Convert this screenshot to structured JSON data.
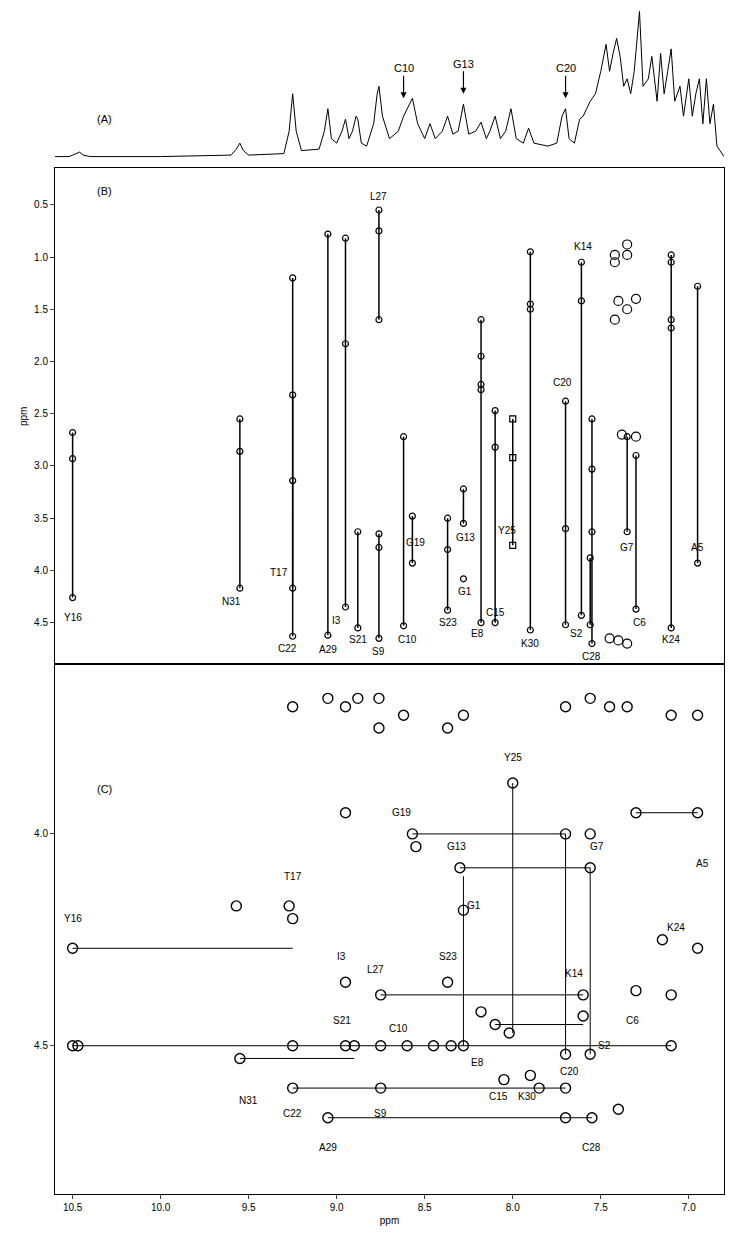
{
  "chart_data": [
    {
      "type": "line",
      "label": "(A)",
      "color": "#000000",
      "tick_labels": false,
      "xlim": [
        10.6,
        6.8
      ],
      "ylim": [
        0,
        1.05
      ],
      "x": [
        10.6,
        10.52,
        10.48,
        10.46,
        10.44,
        10.4,
        10.0,
        9.6,
        9.57,
        9.55,
        9.53,
        9.5,
        9.3,
        9.27,
        9.25,
        9.23,
        9.2,
        9.1,
        9.07,
        9.05,
        9.03,
        9.0,
        8.97,
        8.95,
        8.93,
        8.91,
        8.89,
        8.88,
        8.86,
        8.83,
        8.79,
        8.77,
        8.76,
        8.74,
        8.7,
        8.65,
        8.62,
        8.6,
        8.57,
        8.54,
        8.5,
        8.47,
        8.44,
        8.4,
        8.37,
        8.34,
        8.31,
        8.28,
        8.25,
        8.21,
        8.18,
        8.15,
        8.13,
        8.1,
        8.07,
        8.04,
        8.01,
        7.98,
        7.94,
        7.91,
        7.88,
        7.8,
        7.75,
        7.72,
        7.7,
        7.68,
        7.65,
        7.62,
        7.6,
        7.58,
        7.56,
        7.53,
        7.5,
        7.47,
        7.45,
        7.43,
        7.41,
        7.39,
        7.37,
        7.35,
        7.33,
        7.31,
        7.29,
        7.28,
        7.26,
        7.23,
        7.21,
        7.18,
        7.16,
        7.14,
        7.12,
        7.1,
        7.08,
        7.05,
        7.03,
        7.0,
        6.98,
        6.96,
        6.94,
        6.92,
        6.9,
        6.88,
        6.86,
        6.84,
        6.8
      ],
      "values": [
        0.03,
        0.03,
        0.05,
        0.06,
        0.04,
        0.03,
        0.03,
        0.04,
        0.08,
        0.12,
        0.07,
        0.04,
        0.05,
        0.2,
        0.45,
        0.2,
        0.07,
        0.08,
        0.2,
        0.35,
        0.15,
        0.12,
        0.2,
        0.28,
        0.15,
        0.2,
        0.3,
        0.28,
        0.12,
        0.1,
        0.25,
        0.45,
        0.5,
        0.3,
        0.15,
        0.2,
        0.3,
        0.35,
        0.42,
        0.25,
        0.15,
        0.25,
        0.15,
        0.2,
        0.3,
        0.18,
        0.2,
        0.38,
        0.18,
        0.2,
        0.26,
        0.15,
        0.2,
        0.3,
        0.15,
        0.2,
        0.35,
        0.15,
        0.12,
        0.22,
        0.12,
        0.1,
        0.12,
        0.3,
        0.35,
        0.15,
        0.12,
        0.28,
        0.3,
        0.35,
        0.4,
        0.45,
        0.6,
        0.78,
        0.6,
        0.72,
        0.82,
        0.7,
        0.5,
        0.55,
        0.45,
        0.6,
        0.9,
        1.0,
        0.5,
        0.55,
        0.7,
        0.4,
        0.72,
        0.45,
        0.6,
        0.75,
        0.4,
        0.5,
        0.3,
        0.55,
        0.3,
        0.45,
        0.55,
        0.25,
        0.55,
        0.25,
        0.38,
        0.1,
        0.03
      ],
      "annotations": [
        {
          "text": "C10",
          "x": 8.62,
          "y": 0.42
        },
        {
          "text": "G13",
          "x": 8.28,
          "y": 0.45
        },
        {
          "text": "C20",
          "x": 7.7,
          "y": 0.42
        }
      ]
    },
    {
      "type": "scatter",
      "label": "(B)",
      "color": "#000000",
      "marker": "circle-open",
      "tick_labels": "y",
      "xlim": [
        10.6,
        6.8
      ],
      "ylim": [
        4.9,
        0.15
      ],
      "y_label": "ppm",
      "yticks": [
        0.5,
        {
          "value": 1,
          "label": "1.0"
        },
        1.5,
        {
          "value": 2,
          "label": "2.0"
        },
        2.5,
        {
          "value": 3,
          "label": "3.0"
        },
        3.5,
        {
          "value": 4,
          "label": "4.0"
        },
        4.5
      ],
      "spin_systems": [
        {
          "text": "Y16",
          "x": 10.5,
          "y": [
            2.68,
            2.93,
            4.26
          ],
          "label_x": 10.5,
          "label_y": 4.45
        },
        {
          "text": "N31",
          "x": 9.55,
          "y": [
            2.55,
            2.86,
            4.17
          ],
          "label_x": 9.6,
          "label_y": 4.3
        },
        {
          "text": "T17",
          "x": 9.25,
          "y": [
            1.2,
            4.17
          ],
          "label_x": 9.33,
          "label_y": 4.02
        },
        {
          "text": "C22",
          "x": 9.25,
          "y": [
            2.32,
            3.14,
            4.63
          ],
          "label_x": 9.28,
          "label_y": 4.75
        },
        {
          "text": "A29",
          "x": 9.05,
          "y": [
            0.78,
            4.62
          ],
          "label_x": 9.05,
          "label_y": 4.76
        },
        {
          "text": "I3",
          "x": 8.95,
          "y": [
            0.82,
            1.83,
            4.35
          ],
          "label_x": 9.0,
          "label_y": 4.48
        },
        {
          "text": "S21",
          "x": 8.88,
          "y": [
            3.63,
            4.55
          ],
          "label_x": 8.88,
          "label_y": 4.66
        },
        {
          "text": "L27",
          "x": 8.76,
          "y": [
            0.55,
            0.75,
            1.6
          ],
          "label_x": 8.76,
          "label_y": 0.42
        },
        {
          "text": "S9",
          "x": 8.76,
          "y": [
            3.65,
            3.78,
            4.65
          ],
          "label_x": 8.76,
          "label_y": 4.78
        },
        {
          "text": "C10",
          "x": 8.62,
          "y": [
            2.72,
            4.53
          ],
          "label_x": 8.6,
          "label_y": 4.66
        },
        {
          "text": "G19",
          "x": 8.57,
          "y": [
            3.48,
            3.93
          ],
          "label_x": 8.55,
          "label_y": 3.73
        },
        {
          "text": "S23",
          "x": 8.37,
          "y": [
            3.5,
            3.8,
            4.38
          ],
          "label_x": 8.37,
          "label_y": 4.5
        },
        {
          "text": "G13",
          "x": 8.28,
          "y": [
            3.22,
            3.55
          ],
          "label_x": 8.27,
          "label_y": 3.68
        },
        {
          "text": "G1",
          "x": 8.28,
          "y": [
            4.08
          ],
          "label_x": 8.27,
          "label_y": 4.2
        },
        {
          "text": "E8",
          "x": 8.18,
          "y": [
            1.6,
            1.95,
            2.22,
            2.27,
            4.5
          ],
          "label_x": 8.2,
          "label_y": 4.6
        },
        {
          "text": "C15",
          "x": 8.1,
          "y": [
            2.47,
            2.82,
            4.5
          ],
          "label_x": 8.1,
          "label_y": 4.4
        },
        {
          "text": "Y25",
          "x": 8.0,
          "y": [
            2.55,
            2.92,
            3.76
          ],
          "label_x": 8.03,
          "label_y": 3.62,
          "marker": "square-open"
        },
        {
          "text": "K30",
          "x": 7.9,
          "y": [
            0.95,
            1.45,
            1.5,
            4.57
          ],
          "label_x": 7.9,
          "label_y": 4.7
        },
        {
          "text": "C20",
          "x": 7.7,
          "y": [
            2.38,
            3.6,
            4.52
          ],
          "label_x": 7.72,
          "label_y": 2.2
        },
        {
          "text": "K14",
          "x": 7.61,
          "y": [
            1.05,
            1.42,
            4.43
          ],
          "label_x": 7.6,
          "label_y": 0.9
        },
        {
          "text": "S2",
          "x": 7.56,
          "y": [
            3.88,
            4.52
          ],
          "label_x": 7.64,
          "label_y": 4.6
        },
        {
          "text": "C28",
          "x": 7.55,
          "y": [
            2.55,
            3.03,
            3.63,
            4.7
          ],
          "label_x": 7.55,
          "label_y": 4.82
        },
        {
          "text": "G7",
          "x": 7.35,
          "y": [
            2.72,
            3.63
          ],
          "label_x": 7.35,
          "label_y": 3.78
        },
        {
          "text": "C6",
          "x": 7.3,
          "y": [
            2.9,
            4.37
          ],
          "label_x": 7.28,
          "label_y": 4.5
        },
        {
          "text": "K24",
          "x": 7.1,
          "y": [
            0.98,
            1.05,
            1.6,
            1.68,
            4.55
          ],
          "label_x": 7.1,
          "label_y": 4.66
        },
        {
          "text": "A5",
          "x": 6.95,
          "y": [
            1.28,
            3.93
          ],
          "label_x": 6.95,
          "label_y": 3.78
        }
      ],
      "other_peaks": {
        "x": [
          7.42,
          7.42,
          7.35,
          7.4,
          7.35,
          7.42,
          7.3,
          7.38,
          7.3,
          7.45,
          7.4,
          7.35,
          7.35
        ],
        "y": [
          0.98,
          1.05,
          0.98,
          1.42,
          1.5,
          1.6,
          1.4,
          2.7,
          2.72,
          4.65,
          4.67,
          4.7,
          0.88
        ]
      }
    },
    {
      "type": "scatter",
      "label": "(C)",
      "color": "#000000",
      "marker": "circle-open",
      "xlim": [
        10.6,
        6.8
      ],
      "ylim": [
        4.85,
        3.6
      ],
      "x_label": "ppm",
      "xticks": [
        10.5,
        {
          "value": 10,
          "label": "10.0"
        },
        9.5,
        {
          "value": 9,
          "label": "9.0"
        },
        8.5,
        {
          "value": 8,
          "label": "8.0"
        },
        7.5,
        {
          "value": 7,
          "label": "7.0"
        }
      ],
      "yticks": [
        {
          "value": 4,
          "label": "4.0"
        },
        4.5
      ],
      "peaks": {
        "x": [
          10.5,
          10.5,
          10.47,
          9.57,
          9.55,
          9.27,
          9.25,
          9.25,
          9.25,
          9.25,
          9.05,
          9.05,
          8.95,
          8.95,
          8.9,
          8.95,
          8.95,
          8.88,
          8.75,
          8.75,
          8.75,
          8.76,
          8.76,
          8.62,
          8.6,
          8.57,
          8.55,
          8.45,
          8.37,
          8.37,
          8.35,
          8.3,
          8.28,
          8.28,
          8.28,
          8.18,
          8.1,
          8.05,
          8.02,
          8.0,
          7.9,
          7.85,
          7.7,
          7.7,
          7.7,
          7.7,
          7.7,
          7.6,
          7.6,
          7.56,
          7.56,
          7.56,
          7.56,
          7.55,
          7.45,
          7.4,
          7.35,
          7.3,
          7.3,
          7.15,
          7.1,
          7.1,
          7.1,
          6.95,
          6.95,
          6.95
        ],
        "y": [
          4.27,
          4.5,
          4.5,
          4.17,
          4.53,
          4.17,
          4.2,
          4.5,
          4.6,
          3.7,
          4.67,
          3.68,
          4.35,
          4.5,
          4.5,
          3.7,
          3.95,
          3.68,
          4.38,
          4.5,
          4.6,
          3.68,
          3.75,
          3.72,
          4.5,
          4.0,
          4.03,
          4.5,
          3.75,
          4.35,
          4.5,
          4.08,
          4.18,
          4.5,
          3.72,
          4.42,
          4.45,
          4.58,
          4.47,
          3.88,
          4.57,
          4.6,
          3.7,
          4.0,
          4.52,
          4.6,
          4.67,
          4.38,
          4.43,
          3.68,
          4.0,
          4.08,
          4.52,
          4.67,
          3.7,
          4.65,
          3.7,
          3.95,
          4.37,
          4.25,
          3.72,
          4.38,
          4.5,
          3.72,
          3.95,
          4.27
        ]
      },
      "connections": [
        {
          "x": [
            10.5,
            9.25
          ],
          "y": [
            4.27,
            4.27
          ]
        },
        {
          "x": [
            10.5,
            7.1
          ],
          "y": [
            4.5,
            4.5
          ]
        },
        {
          "x": [
            9.55,
            8.9
          ],
          "y": [
            4.53,
            4.53
          ]
        },
        {
          "x": [
            9.25,
            7.7
          ],
          "y": [
            4.6,
            4.6
          ]
        },
        {
          "x": [
            9.05,
            7.55
          ],
          "y": [
            4.67,
            4.67
          ]
        },
        {
          "x": [
            8.75,
            7.6
          ],
          "y": [
            4.38,
            4.38
          ]
        },
        {
          "x": [
            8.57,
            7.7,
            7.7
          ],
          "y": [
            4.0,
            4.0,
            4.52
          ]
        },
        {
          "x": [
            8.3,
            7.56,
            7.56
          ],
          "y": [
            4.08,
            4.08,
            4.52
          ]
        },
        {
          "x": [
            7.3,
            6.95
          ],
          "y": [
            3.95,
            3.95
          ]
        },
        {
          "x": [
            8.0,
            8.0
          ],
          "y": [
            3.88,
            4.47
          ]
        },
        {
          "x": [
            8.28,
            8.28
          ],
          "y": [
            4.1,
            4.5
          ]
        },
        {
          "x": [
            8.1,
            7.6
          ],
          "y": [
            4.45,
            4.45
          ]
        }
      ],
      "labels": [
        {
          "text": "Y16",
          "x": 10.5,
          "y": 4.2
        },
        {
          "text": "T17",
          "x": 9.25,
          "y": 4.1
        },
        {
          "text": "I3",
          "x": 8.97,
          "y": 4.29
        },
        {
          "text": "L27",
          "x": 8.78,
          "y": 4.32
        },
        {
          "text": "S21",
          "x": 8.97,
          "y": 4.44
        },
        {
          "text": "C10",
          "x": 8.65,
          "y": 4.46
        },
        {
          "text": "S9",
          "x": 8.75,
          "y": 4.66
        },
        {
          "text": "C22",
          "x": 9.25,
          "y": 4.66
        },
        {
          "text": "A29",
          "x": 9.05,
          "y": 4.74
        },
        {
          "text": "N31",
          "x": 9.5,
          "y": 4.63
        },
        {
          "text": "G19",
          "x": 8.63,
          "y": 3.95
        },
        {
          "text": "G13",
          "x": 8.32,
          "y": 4.03
        },
        {
          "text": "G1",
          "x": 8.22,
          "y": 4.17
        },
        {
          "text": "S23",
          "x": 8.37,
          "y": 4.29
        },
        {
          "text": "Y25",
          "x": 8.0,
          "y": 3.82
        },
        {
          "text": "G7",
          "x": 7.52,
          "y": 4.03
        },
        {
          "text": "A5",
          "x": 6.92,
          "y": 4.07
        },
        {
          "text": "K24",
          "x": 7.07,
          "y": 4.22
        },
        {
          "text": "K14",
          "x": 7.65,
          "y": 4.33
        },
        {
          "text": "C6",
          "x": 7.32,
          "y": 4.44
        },
        {
          "text": "S2",
          "x": 7.48,
          "y": 4.5
        },
        {
          "text": "C20",
          "x": 7.68,
          "y": 4.56
        },
        {
          "text": "E8",
          "x": 8.2,
          "y": 4.54
        },
        {
          "text": "C15",
          "x": 8.08,
          "y": 4.62
        },
        {
          "text": "K30",
          "x": 7.92,
          "y": 4.62
        },
        {
          "text": "C28",
          "x": 7.55,
          "y": 4.74
        }
      ]
    }
  ]
}
